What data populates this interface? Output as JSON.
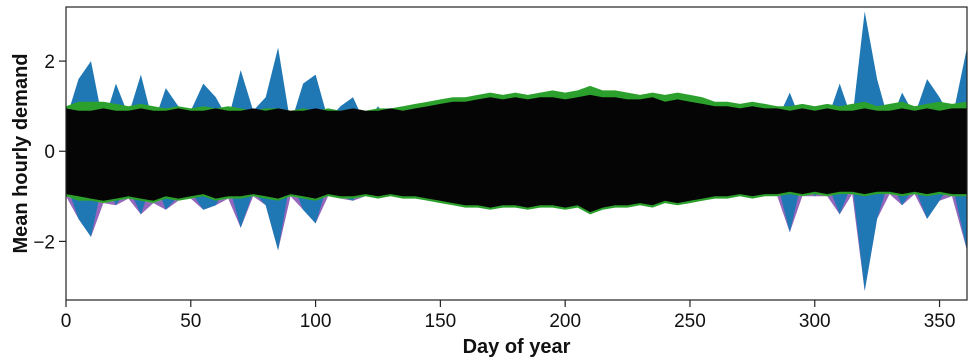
{
  "chart_data": {
    "type": "area",
    "title": "",
    "xlabel": "Day of year",
    "ylabel": "Mean hourly demand",
    "xlim": [
      0,
      361
    ],
    "ylim": [
      -3.3,
      3.2
    ],
    "xticks": [
      0,
      50,
      100,
      150,
      200,
      250,
      300,
      350
    ],
    "xtick_labels": [
      "0",
      "50",
      "100",
      "150",
      "200",
      "250",
      "300",
      "350"
    ],
    "yticks": [
      -2,
      0,
      2
    ],
    "ytick_labels": [
      "−2",
      "0",
      "2"
    ],
    "grid": false,
    "legend": false,
    "series_note": "Stacked areas above and below zero: black band symmetric about 0, green/purple baseline envelopes, blue/purple spiky envelopes.",
    "x": [
      0,
      5,
      10,
      15,
      20,
      25,
      30,
      35,
      40,
      45,
      50,
      55,
      60,
      65,
      70,
      75,
      80,
      85,
      90,
      95,
      100,
      105,
      110,
      115,
      120,
      125,
      130,
      135,
      140,
      145,
      150,
      155,
      160,
      165,
      170,
      175,
      180,
      185,
      190,
      195,
      200,
      205,
      210,
      215,
      220,
      225,
      230,
      235,
      240,
      245,
      250,
      255,
      260,
      265,
      270,
      275,
      280,
      285,
      290,
      295,
      300,
      305,
      310,
      315,
      320,
      325,
      330,
      335,
      340,
      345,
      350,
      355,
      361
    ],
    "series": [
      {
        "color": "#050505",
        "upper": [
          0.95,
          0.9,
          0.9,
          0.95,
          0.9,
          0.9,
          0.95,
          0.9,
          0.9,
          0.95,
          0.9,
          0.9,
          0.95,
          0.9,
          0.9,
          0.95,
          0.9,
          0.95,
          0.9,
          0.9,
          0.95,
          0.9,
          0.9,
          0.95,
          0.9,
          0.9,
          0.95,
          0.9,
          0.95,
          1.0,
          1.05,
          1.1,
          1.1,
          1.15,
          1.2,
          1.15,
          1.2,
          1.15,
          1.2,
          1.2,
          1.15,
          1.2,
          1.25,
          1.2,
          1.2,
          1.15,
          1.15,
          1.2,
          1.1,
          1.15,
          1.1,
          1.05,
          1.0,
          1.0,
          0.95,
          1.0,
          0.95,
          0.95,
          0.9,
          0.95,
          0.9,
          0.95,
          0.9,
          0.9,
          0.95,
          0.9,
          0.9,
          0.95,
          0.9,
          0.95,
          0.9,
          0.95,
          0.95
        ],
        "lower": [
          -0.95,
          -1.0,
          -1.05,
          -1.1,
          -1.05,
          -1.0,
          -1.05,
          -1.1,
          -1.0,
          -1.05,
          -1.0,
          -0.95,
          -1.05,
          -1.0,
          -1.0,
          -0.95,
          -1.0,
          -1.05,
          -0.95,
          -1.0,
          -1.05,
          -0.95,
          -1.0,
          -1.0,
          -0.95,
          -1.0,
          -0.95,
          -1.0,
          -1.0,
          -1.05,
          -1.1,
          -1.15,
          -1.2,
          -1.2,
          -1.25,
          -1.2,
          -1.2,
          -1.25,
          -1.2,
          -1.2,
          -1.25,
          -1.2,
          -1.35,
          -1.25,
          -1.2,
          -1.2,
          -1.15,
          -1.2,
          -1.1,
          -1.15,
          -1.1,
          -1.05,
          -1.0,
          -1.0,
          -0.95,
          -1.0,
          -0.95,
          -0.95,
          -0.9,
          -0.95,
          -0.9,
          -0.95,
          -0.9,
          -0.9,
          -0.95,
          -0.9,
          -0.9,
          -0.95,
          -0.9,
          -0.95,
          -0.9,
          -0.95,
          -0.95
        ]
      },
      {
        "color": "#2ca02c",
        "upper": [
          1.0,
          1.1,
          1.1,
          1.1,
          1.05,
          1.0,
          1.05,
          1.0,
          0.95,
          1.0,
          0.95,
          1.0,
          0.95,
          1.0,
          0.95,
          0.9,
          0.95,
          0.95,
          0.9,
          0.95,
          0.9,
          0.95,
          0.9,
          0.95,
          0.9,
          0.95,
          0.95,
          1.0,
          1.05,
          1.1,
          1.15,
          1.2,
          1.2,
          1.25,
          1.3,
          1.25,
          1.3,
          1.25,
          1.3,
          1.35,
          1.3,
          1.35,
          1.45,
          1.35,
          1.35,
          1.3,
          1.25,
          1.3,
          1.25,
          1.3,
          1.25,
          1.2,
          1.1,
          1.1,
          1.05,
          1.1,
          1.05,
          1.0,
          1.0,
          1.05,
          1.0,
          1.05,
          1.0,
          1.05,
          1.1,
          1.0,
          1.05,
          1.1,
          1.0,
          1.05,
          1.1,
          1.05,
          1.1
        ],
        "lower": [
          -1.0,
          -1.1,
          -1.1,
          -1.15,
          -1.1,
          -1.05,
          -1.1,
          -1.15,
          -1.05,
          -1.1,
          -1.05,
          -1.0,
          -1.1,
          -1.05,
          -1.05,
          -1.0,
          -1.05,
          -1.1,
          -1.0,
          -1.05,
          -1.1,
          -1.0,
          -1.05,
          -1.05,
          -1.0,
          -1.05,
          -1.0,
          -1.05,
          -1.05,
          -1.1,
          -1.15,
          -1.2,
          -1.25,
          -1.25,
          -1.3,
          -1.25,
          -1.25,
          -1.3,
          -1.25,
          -1.25,
          -1.3,
          -1.25,
          -1.4,
          -1.3,
          -1.25,
          -1.25,
          -1.2,
          -1.25,
          -1.15,
          -1.2,
          -1.15,
          -1.1,
          -1.05,
          -1.05,
          -1.0,
          -1.05,
          -1.0,
          -1.0,
          -0.95,
          -1.0,
          -0.95,
          -1.0,
          -0.95,
          -0.95,
          -1.0,
          -0.95,
          -0.95,
          -1.0,
          -0.95,
          -1.0,
          -0.95,
          -1.0,
          -1.0
        ]
      },
      {
        "color": "#1f77b4",
        "upper": [
          0.7,
          1.6,
          2.0,
          0.6,
          1.5,
          0.8,
          1.7,
          0.6,
          1.4,
          1.0,
          0.9,
          1.5,
          1.2,
          0.7,
          1.8,
          0.9,
          1.2,
          2.3,
          0.6,
          1.5,
          1.7,
          0.7,
          1.0,
          1.2,
          0.6,
          1.0,
          0.6,
          0.8,
          0.7,
          0.6,
          0.5,
          0.5,
          0.5,
          0.45,
          0.5,
          0.5,
          0.45,
          0.5,
          0.5,
          0.5,
          0.5,
          0.5,
          0.5,
          0.5,
          0.5,
          0.5,
          0.5,
          0.5,
          0.5,
          0.5,
          0.55,
          0.6,
          0.6,
          0.8,
          0.6,
          0.7,
          0.9,
          0.7,
          1.3,
          0.6,
          1.0,
          0.7,
          1.5,
          0.7,
          3.1,
          1.6,
          0.6,
          1.3,
          0.8,
          1.6,
          1.2,
          0.7,
          2.3
        ],
        "lower": [
          -0.7,
          -1.5,
          -1.9,
          -0.6,
          -1.2,
          -0.8,
          -1.4,
          -0.6,
          -1.3,
          -1.0,
          -0.9,
          -1.3,
          -1.2,
          -0.7,
          -1.7,
          -0.9,
          -1.2,
          -2.2,
          -0.6,
          -1.3,
          -1.6,
          -0.7,
          -1.0,
          -1.1,
          -0.6,
          -0.9,
          -0.6,
          -0.7,
          -0.6,
          -0.55,
          -0.5,
          -0.5,
          -0.45,
          -0.45,
          -0.45,
          -0.5,
          -0.45,
          -0.5,
          -0.45,
          -0.5,
          -0.5,
          -0.45,
          -0.5,
          -0.5,
          -0.5,
          -0.5,
          -0.5,
          -0.5,
          -0.5,
          -0.5,
          -0.5,
          -0.55,
          -0.6,
          -0.7,
          -0.6,
          -0.7,
          -0.9,
          -0.7,
          -1.8,
          -0.6,
          -1.0,
          -0.7,
          -1.4,
          -0.7,
          -3.1,
          -1.5,
          -0.6,
          -1.2,
          -0.8,
          -1.5,
          -1.1,
          -0.7,
          -2.2
        ]
      }
    ]
  }
}
